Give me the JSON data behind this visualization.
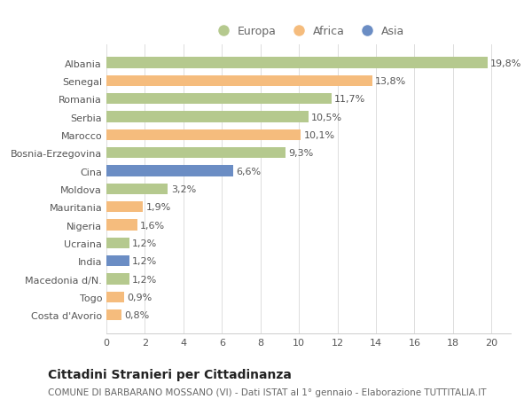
{
  "categories": [
    "Albania",
    "Senegal",
    "Romania",
    "Serbia",
    "Marocco",
    "Bosnia-Erzegovina",
    "Cina",
    "Moldova",
    "Mauritania",
    "Nigeria",
    "Ucraina",
    "India",
    "Macedonia d/N.",
    "Togo",
    "Costa d'Avorio"
  ],
  "values": [
    19.8,
    13.8,
    11.7,
    10.5,
    10.1,
    9.3,
    6.6,
    3.2,
    1.9,
    1.6,
    1.2,
    1.2,
    1.2,
    0.9,
    0.8
  ],
  "labels": [
    "19,8%",
    "13,8%",
    "11,7%",
    "10,5%",
    "10,1%",
    "9,3%",
    "6,6%",
    "3,2%",
    "1,9%",
    "1,6%",
    "1,2%",
    "1,2%",
    "1,2%",
    "0,9%",
    "0,8%"
  ],
  "continents": [
    "Europa",
    "Africa",
    "Europa",
    "Europa",
    "Africa",
    "Europa",
    "Asia",
    "Europa",
    "Africa",
    "Africa",
    "Europa",
    "Asia",
    "Europa",
    "Africa",
    "Africa"
  ],
  "colors": {
    "Europa": "#b5c98e",
    "Africa": "#f5bc7d",
    "Asia": "#6b8dc4"
  },
  "xlim": [
    0,
    21
  ],
  "xticks": [
    0,
    2,
    4,
    6,
    8,
    10,
    12,
    14,
    16,
    18,
    20
  ],
  "title": "Cittadini Stranieri per Cittadinanza",
  "subtitle": "COMUNE DI BARBARANO MOSSANO (VI) - Dati ISTAT al 1° gennaio - Elaborazione TUTTITALIA.IT",
  "background_color": "#ffffff",
  "bar_height": 0.6,
  "label_fontsize": 8,
  "ytick_fontsize": 8,
  "xtick_fontsize": 8,
  "title_fontsize": 10,
  "subtitle_fontsize": 7.5,
  "legend_fontsize": 9
}
